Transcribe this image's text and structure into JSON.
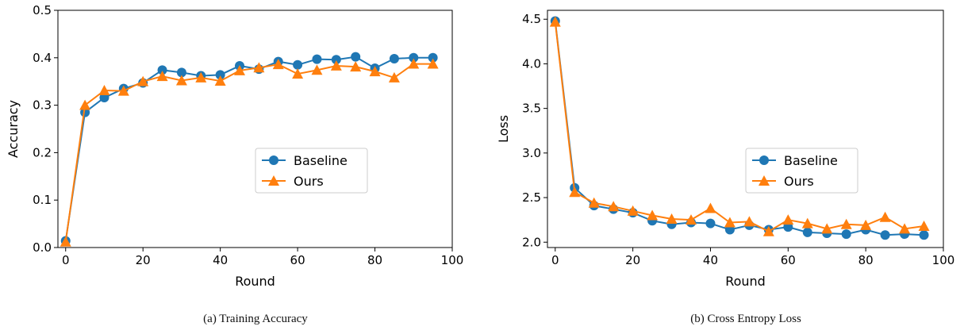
{
  "chart_data": [
    {
      "type": "line",
      "caption": "(a)  Training Accuracy",
      "xlabel": "Round",
      "ylabel": "Accuracy",
      "xlim": [
        -2,
        100
      ],
      "ylim": [
        0,
        0.5
      ],
      "xticks": [
        0,
        20,
        40,
        60,
        80,
        100
      ],
      "yticks": [
        0.0,
        0.1,
        0.2,
        0.3,
        0.4,
        0.5
      ],
      "ytick_labels": [
        "0.0",
        "0.1",
        "0.2",
        "0.3",
        "0.4",
        "0.5"
      ],
      "legend_position": "center-right",
      "x": [
        0,
        5,
        10,
        15,
        20,
        25,
        30,
        35,
        40,
        45,
        50,
        55,
        60,
        65,
        70,
        75,
        80,
        85,
        90,
        95
      ],
      "series": [
        {
          "name": "Baseline",
          "color": "#1f77b4",
          "marker": "circle",
          "values": [
            0.014,
            0.285,
            0.316,
            0.335,
            0.347,
            0.374,
            0.369,
            0.362,
            0.364,
            0.383,
            0.376,
            0.392,
            0.385,
            0.397,
            0.396,
            0.402,
            0.378,
            0.398,
            0.4,
            0.4
          ]
        },
        {
          "name": "Ours",
          "color": "#ff7f0e",
          "marker": "triangle",
          "values": [
            0.012,
            0.3,
            0.331,
            0.33,
            0.35,
            0.361,
            0.352,
            0.358,
            0.351,
            0.373,
            0.379,
            0.386,
            0.366,
            0.374,
            0.383,
            0.381,
            0.371,
            0.358,
            0.387,
            0.387
          ]
        }
      ]
    },
    {
      "type": "line",
      "caption": "(b)  Cross Entropy Loss",
      "xlabel": "Round",
      "ylabel": "Loss",
      "xlim": [
        -2,
        100
      ],
      "ylim": [
        1.94,
        4.6
      ],
      "xticks": [
        0,
        20,
        40,
        60,
        80,
        100
      ],
      "yticks": [
        2.0,
        2.5,
        3.0,
        3.5,
        4.0,
        4.5
      ],
      "ytick_labels": [
        "2.0",
        "2.5",
        "3.0",
        "3.5",
        "4.0",
        "4.5"
      ],
      "legend_position": "center-right",
      "x": [
        0,
        5,
        10,
        15,
        20,
        25,
        30,
        35,
        40,
        45,
        50,
        55,
        60,
        65,
        70,
        75,
        80,
        85,
        90,
        95
      ],
      "series": [
        {
          "name": "Baseline",
          "color": "#1f77b4",
          "marker": "circle",
          "values": [
            4.48,
            2.61,
            2.41,
            2.37,
            2.33,
            2.24,
            2.2,
            2.22,
            2.21,
            2.14,
            2.19,
            2.14,
            2.17,
            2.11,
            2.1,
            2.09,
            2.14,
            2.08,
            2.09,
            2.08
          ]
        },
        {
          "name": "Ours",
          "color": "#ff7f0e",
          "marker": "triangle",
          "values": [
            4.47,
            2.56,
            2.44,
            2.4,
            2.35,
            2.3,
            2.26,
            2.25,
            2.38,
            2.22,
            2.23,
            2.12,
            2.25,
            2.21,
            2.15,
            2.2,
            2.19,
            2.28,
            2.15,
            2.18
          ]
        }
      ]
    }
  ]
}
